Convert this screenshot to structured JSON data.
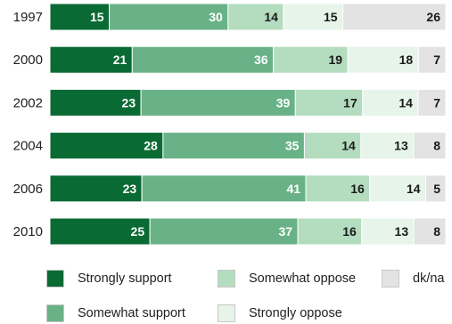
{
  "chart_data": {
    "type": "bar",
    "orientation": "horizontal",
    "stacked": true,
    "normalized_percent": true,
    "categories": [
      "1997",
      "2000",
      "2002",
      "2004",
      "2006",
      "2010"
    ],
    "series": [
      {
        "name": "Strongly support",
        "color": "#0a6a33",
        "label_color": "#ffffff",
        "values": [
          15,
          21,
          23,
          28,
          23,
          25
        ]
      },
      {
        "name": "Somewhat support",
        "color": "#69b287",
        "label_color": "#ffffff",
        "values": [
          30,
          36,
          39,
          35,
          41,
          37
        ]
      },
      {
        "name": "Somewhat oppose",
        "color": "#b4dcbf",
        "label_color": "#1a1a1a",
        "values": [
          14,
          19,
          17,
          14,
          16,
          16
        ]
      },
      {
        "name": "Strongly oppose",
        "color": "#e7f4e9",
        "label_color": "#1a1a1a",
        "values": [
          15,
          18,
          14,
          13,
          14,
          13
        ]
      },
      {
        "name": "dk/na",
        "color": "#e3e3e3",
        "label_color": "#1a1a1a",
        "values": [
          26,
          7,
          7,
          8,
          5,
          8
        ]
      }
    ],
    "legend_position": "bottom",
    "grid": false
  },
  "legend": [
    {
      "label": "Strongly support",
      "color": "#0a6a33"
    },
    {
      "label": "Somewhat oppose",
      "color": "#b4dcbf"
    },
    {
      "label": "dk/na",
      "color": "#e3e3e3"
    },
    {
      "label": "Somewhat support",
      "color": "#69b287"
    },
    {
      "label": "Strongly oppose",
      "color": "#e7f4e9"
    }
  ]
}
